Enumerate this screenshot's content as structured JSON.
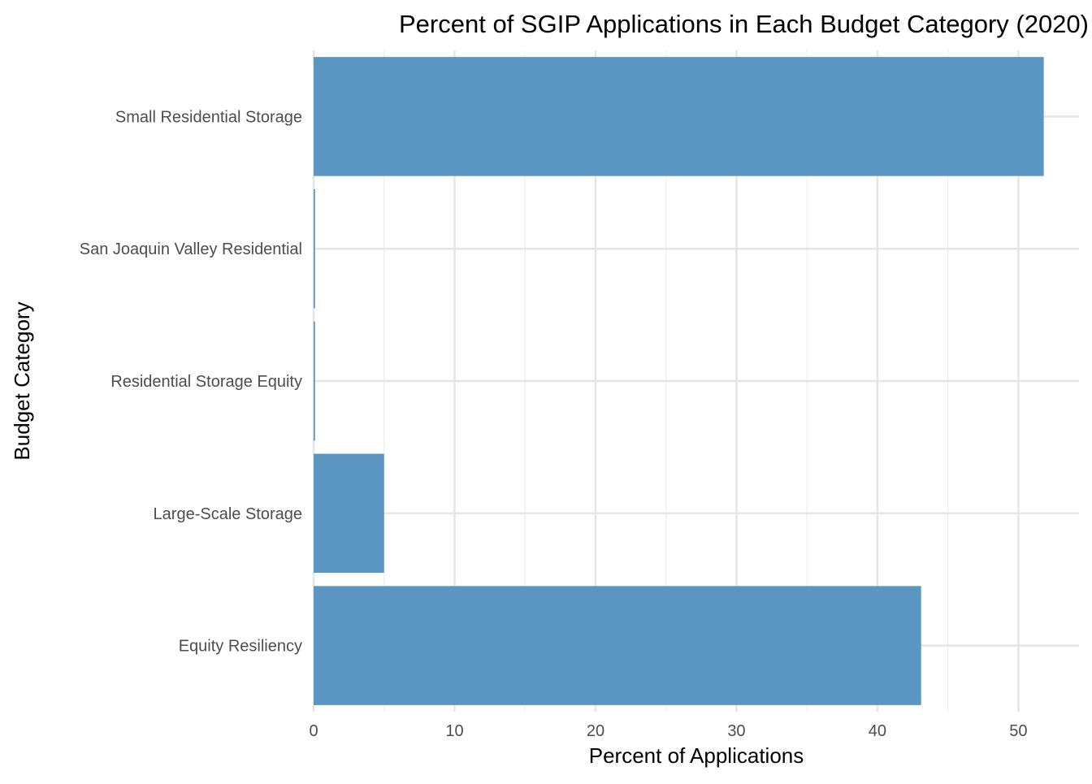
{
  "chart_data": {
    "type": "bar",
    "orientation": "horizontal",
    "title": "Percent of SGIP Applications in Each Budget Category (2020)",
    "xlabel": "Percent of Applications",
    "ylabel": "Budget Category",
    "categories": [
      "Equity Resiliency",
      "Large-Scale Storage",
      "Residential Storage Equity",
      "San Joaquin Valley Residential",
      "Small Residential Storage"
    ],
    "values": [
      43.1,
      5.0,
      0.1,
      0.1,
      51.8
    ],
    "xlim": [
      0,
      54.3
    ],
    "x_ticks": [
      0,
      10,
      20,
      30,
      40,
      50
    ],
    "x_minor_ticks": [
      5,
      15,
      25,
      35,
      45
    ],
    "grid": true,
    "legend": "none",
    "bar_color": "#5b96c2"
  }
}
